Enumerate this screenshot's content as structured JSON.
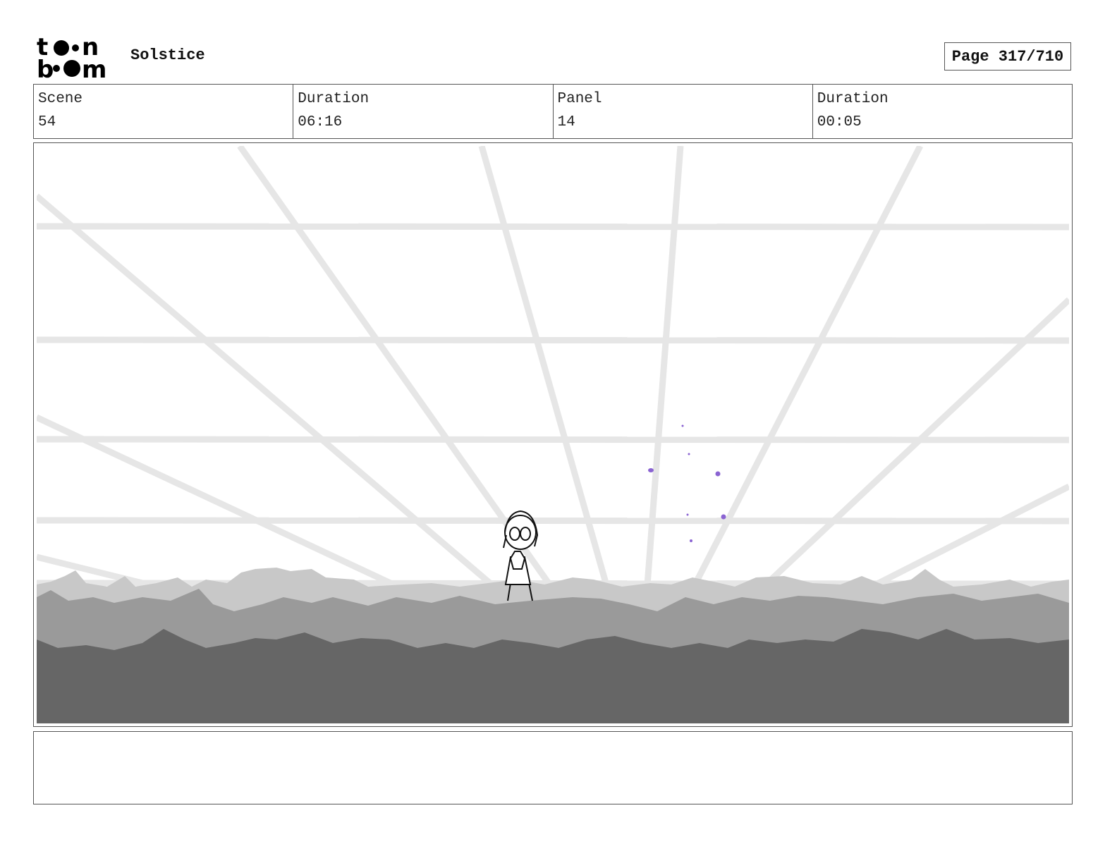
{
  "header": {
    "logo_text": "toon boom",
    "project_title": "Solstice",
    "page_label": "Page 317/710"
  },
  "info": [
    {
      "label": "Scene",
      "value": "54"
    },
    {
      "label": "Duration",
      "value": "06:16"
    },
    {
      "label": "Panel",
      "value": "14"
    },
    {
      "label": "Duration",
      "value": "00:05"
    }
  ],
  "colors": {
    "grid": "#e6e6e6",
    "ground_light": "#c8c8c8",
    "ground_mid": "#9a9a9a",
    "ground_dark": "#666666",
    "particles": "#8a63d2"
  },
  "notes": ""
}
